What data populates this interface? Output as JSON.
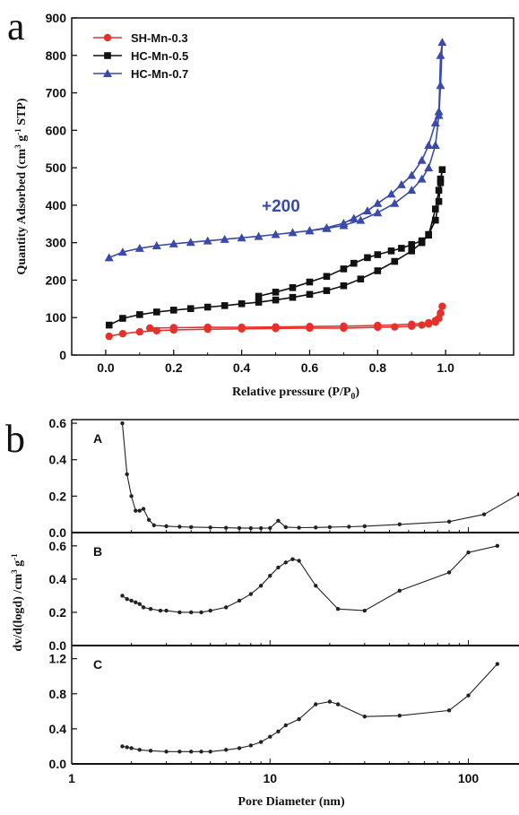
{
  "chart_data": [
    {
      "type": "line",
      "panel_letter": "a",
      "xlabel": "Relative pressure (P/P",
      "xlabel_sub": "0",
      "xlabel_close": ")",
      "ylabel": "Quantity Adsorbed (cm",
      "ylabel_sup": "3",
      "ylabel_mid": " g",
      "ylabel_sup2": "-1",
      "ylabel_end": " STP)",
      "xlim": [
        -0.1,
        1.2
      ],
      "ylim": [
        0,
        900
      ],
      "xticks": [
        "0.0",
        "0.2",
        "0.4",
        "0.6",
        "0.8",
        "1.0"
      ],
      "yticks": [
        "0",
        "100",
        "200",
        "300",
        "400",
        "500",
        "600",
        "700",
        "800",
        "900"
      ],
      "legend_position": "top-left",
      "annotation": "+200",
      "annotation_color": "#3a4aa8",
      "series": [
        {
          "name": "SH-Mn-0.3",
          "color": "#e8302b",
          "marker": "circle",
          "x": [
            0.01,
            0.05,
            0.1,
            0.15,
            0.2,
            0.3,
            0.4,
            0.5,
            0.6,
            0.7,
            0.8,
            0.85,
            0.9,
            0.93,
            0.95,
            0.97,
            0.98,
            0.985,
            0.99,
            0.985,
            0.97,
            0.95,
            0.9,
            0.8,
            0.7,
            0.6,
            0.5,
            0.4,
            0.3,
            0.2,
            0.13
          ],
          "y": [
            50,
            57,
            62,
            65,
            67,
            69,
            70,
            71,
            72,
            72,
            74,
            75,
            77,
            80,
            83,
            88,
            98,
            112,
            130,
            112,
            92,
            86,
            82,
            79,
            77,
            76,
            75,
            74,
            74,
            73,
            72
          ]
        },
        {
          "name": "HC-Mn-0.5",
          "color": "#111111",
          "marker": "square",
          "x": [
            0.01,
            0.05,
            0.1,
            0.15,
            0.2,
            0.25,
            0.3,
            0.35,
            0.4,
            0.45,
            0.5,
            0.55,
            0.6,
            0.65,
            0.7,
            0.75,
            0.8,
            0.85,
            0.9,
            0.93,
            0.95,
            0.97,
            0.98,
            0.985,
            0.99,
            0.985,
            0.98,
            0.97,
            0.95,
            0.93,
            0.9,
            0.87,
            0.84,
            0.8,
            0.77,
            0.73,
            0.7,
            0.65,
            0.6,
            0.55,
            0.5,
            0.45
          ],
          "y": [
            80,
            98,
            108,
            115,
            120,
            124,
            128,
            132,
            137,
            141,
            147,
            154,
            162,
            172,
            185,
            203,
            225,
            250,
            278,
            300,
            322,
            360,
            410,
            460,
            495,
            470,
            440,
            390,
            320,
            305,
            295,
            285,
            278,
            268,
            260,
            245,
            230,
            210,
            195,
            180,
            168,
            157
          ]
        },
        {
          "name": "HC-Mn-0.7",
          "color": "#3a4aa8",
          "marker": "triangle",
          "x": [
            0.01,
            0.05,
            0.1,
            0.15,
            0.2,
            0.25,
            0.3,
            0.35,
            0.4,
            0.45,
            0.5,
            0.55,
            0.6,
            0.65,
            0.7,
            0.75,
            0.8,
            0.85,
            0.9,
            0.93,
            0.95,
            0.97,
            0.98,
            0.985,
            0.99,
            0.985,
            0.98,
            0.97,
            0.95,
            0.93,
            0.9,
            0.87,
            0.84,
            0.8,
            0.77,
            0.73,
            0.7,
            0.65,
            0.6
          ],
          "y": [
            260,
            275,
            285,
            292,
            297,
            301,
            305,
            309,
            313,
            317,
            322,
            327,
            332,
            338,
            346,
            360,
            380,
            405,
            440,
            470,
            500,
            560,
            640,
            720,
            835,
            800,
            650,
            620,
            560,
            520,
            480,
            455,
            430,
            405,
            385,
            365,
            352,
            340,
            332
          ]
        }
      ]
    },
    {
      "type": "line",
      "panel_letter": "b",
      "xscale": "log",
      "xlim": [
        1,
        180
      ],
      "xlabel": "Pore Diameter (nm)",
      "xticks": [
        "1",
        "10",
        "100"
      ],
      "ylabel": "dv/d(logd) /cm",
      "ylabel_sup": "3",
      "ylabel_mid": " g",
      "ylabel_sup2": "-1",
      "color": "#222222",
      "marker": "circle",
      "subplots": [
        {
          "label": "A",
          "ylim": [
            0,
            0.62
          ],
          "yticks": [
            "0.0",
            "0.2",
            "0.4",
            "0.6"
          ],
          "x": [
            1.8,
            1.9,
            2.0,
            2.1,
            2.2,
            2.3,
            2.45,
            2.6,
            3,
            3.5,
            4,
            5,
            6,
            7,
            8,
            9,
            10,
            11,
            12,
            14,
            17,
            20,
            25,
            30,
            45,
            80,
            120,
            180
          ],
          "y": [
            0.6,
            0.32,
            0.2,
            0.12,
            0.12,
            0.13,
            0.07,
            0.04,
            0.035,
            0.032,
            0.03,
            0.028,
            0.026,
            0.025,
            0.024,
            0.024,
            0.025,
            0.065,
            0.03,
            0.027,
            0.028,
            0.03,
            0.032,
            0.035,
            0.045,
            0.06,
            0.1,
            0.21
          ]
        },
        {
          "label": "B",
          "ylim": [
            0,
            0.68
          ],
          "yticks": [
            "0.0",
            "0.2",
            "0.4",
            "0.6"
          ],
          "x": [
            1.8,
            1.9,
            2.0,
            2.1,
            2.2,
            2.3,
            2.5,
            2.8,
            3,
            3.5,
            4,
            4.5,
            5,
            6,
            7,
            8,
            9,
            10,
            11,
            12,
            13,
            14,
            17,
            22,
            30,
            45,
            80,
            100,
            140
          ],
          "y": [
            0.3,
            0.28,
            0.27,
            0.26,
            0.25,
            0.23,
            0.22,
            0.21,
            0.21,
            0.2,
            0.2,
            0.2,
            0.21,
            0.23,
            0.27,
            0.31,
            0.36,
            0.42,
            0.47,
            0.5,
            0.52,
            0.51,
            0.36,
            0.22,
            0.21,
            0.33,
            0.44,
            0.56,
            0.6
          ]
        },
        {
          "label": "C",
          "ylim": [
            0,
            1.35
          ],
          "yticks": [
            "0.0",
            "0.4",
            "0.8",
            "1.2"
          ],
          "x": [
            1.8,
            1.9,
            2.0,
            2.2,
            2.5,
            3,
            3.5,
            4,
            4.5,
            5,
            6,
            7,
            8,
            9,
            10,
            11,
            12,
            14,
            17,
            20,
            22,
            30,
            45,
            80,
            100,
            140
          ],
          "y": [
            0.2,
            0.19,
            0.18,
            0.16,
            0.15,
            0.14,
            0.14,
            0.14,
            0.14,
            0.14,
            0.16,
            0.18,
            0.21,
            0.25,
            0.31,
            0.37,
            0.44,
            0.51,
            0.68,
            0.71,
            0.68,
            0.54,
            0.55,
            0.61,
            0.78,
            1.14
          ]
        }
      ]
    }
  ]
}
